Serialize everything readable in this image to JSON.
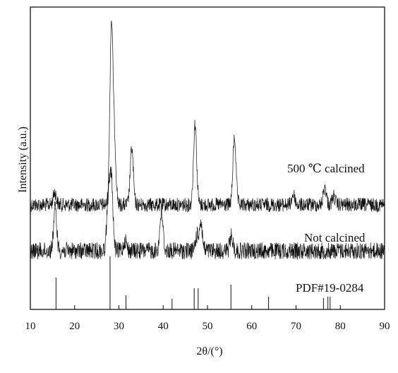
{
  "chart_data": {
    "type": "line",
    "xlabel": "2θ/(°)",
    "ylabel": "Intensity (a.u.)",
    "xlim": [
      10,
      90
    ],
    "x_ticks": [
      10,
      20,
      30,
      40,
      50,
      60,
      70,
      80,
      90
    ],
    "x_tick_labels": [
      "10",
      "20",
      "30",
      "40",
      "50",
      "60",
      "70",
      "80",
      "90"
    ],
    "y_ticks_shown": false,
    "grid": false,
    "series": [
      {
        "name": "500 ℃ calcined",
        "kind": "pattern",
        "baseline": 290,
        "noise": 10,
        "peaks": [
          {
            "x": 15.5,
            "height": 18
          },
          {
            "x": 28.3,
            "height": 250
          },
          {
            "x": 29.0,
            "height": 80
          },
          {
            "x": 32.9,
            "height": 80
          },
          {
            "x": 47.2,
            "height": 115
          },
          {
            "x": 56.1,
            "height": 95
          },
          {
            "x": 69.4,
            "height": 15
          },
          {
            "x": 76.5,
            "height": 25
          },
          {
            "x": 78.5,
            "height": 12
          }
        ]
      },
      {
        "name": "Not calcined",
        "kind": "pattern",
        "baseline": 355,
        "noise": 12,
        "peaks": [
          {
            "x": 15.6,
            "height": 60
          },
          {
            "x": 27.6,
            "height": 70
          },
          {
            "x": 28.3,
            "height": 100
          },
          {
            "x": 31.4,
            "height": 15
          },
          {
            "x": 39.6,
            "height": 55
          },
          {
            "x": 47.6,
            "height": 20
          },
          {
            "x": 48.5,
            "height": 40
          },
          {
            "x": 55.4,
            "height": 20
          }
        ]
      },
      {
        "name": "PDF#19-0284",
        "kind": "reference",
        "lines": [
          {
            "x": 15.8,
            "height": 45
          },
          {
            "x": 28.0,
            "height": 75
          },
          {
            "x": 31.6,
            "height": 20
          },
          {
            "x": 42.0,
            "height": 15
          },
          {
            "x": 47.0,
            "height": 30
          },
          {
            "x": 47.9,
            "height": 30
          },
          {
            "x": 55.3,
            "height": 35
          },
          {
            "x": 63.8,
            "height": 18
          },
          {
            "x": 76.2,
            "height": 16
          },
          {
            "x": 77.2,
            "height": 18
          },
          {
            "x": 77.7,
            "height": 18
          }
        ]
      }
    ]
  }
}
